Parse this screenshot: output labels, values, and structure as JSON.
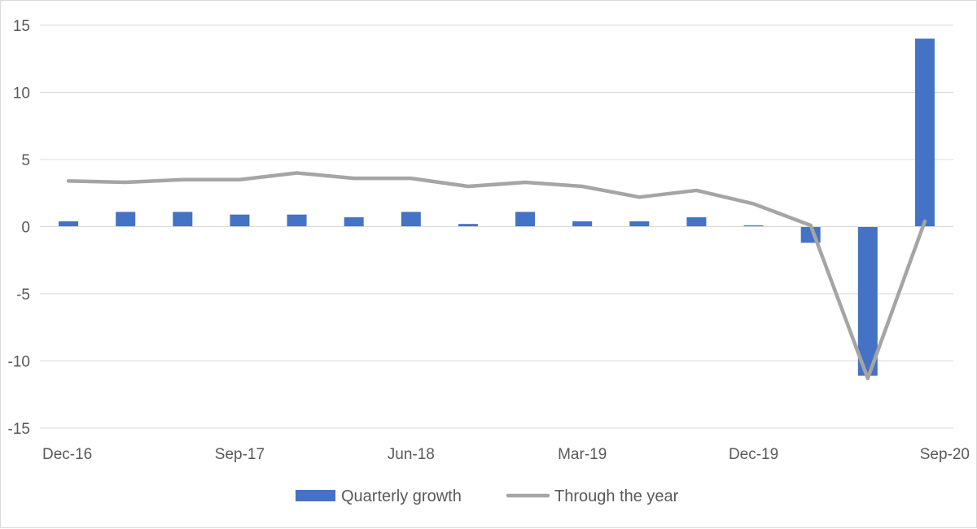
{
  "chart_data": {
    "type": "bar",
    "title": "",
    "xlabel": "",
    "ylabel": "",
    "ylim": [
      -15,
      15
    ],
    "y_ticks": [
      15,
      10,
      5,
      0,
      -5,
      -10,
      -15
    ],
    "y_tick_labels": [
      "15",
      "10",
      "5",
      "0",
      "-5",
      "-10",
      "-15"
    ],
    "categories": [
      "Dec-16",
      "Mar-17",
      "Jun-17",
      "Sep-17",
      "Dec-17",
      "Mar-18",
      "Jun-18",
      "Sep-18",
      "Dec-18",
      "Mar-19",
      "Jun-19",
      "Sep-19",
      "Dec-19",
      "Mar-20",
      "Jun-20",
      "Sep-20"
    ],
    "x_tick_labels": [
      "Dec-16",
      "",
      "",
      "Sep-17",
      "",
      "",
      "Jun-18",
      "",
      "",
      "Mar-19",
      "",
      "",
      "Dec-19",
      "",
      "",
      "Sep-20"
    ],
    "grid": true,
    "legend_position": "bottom",
    "series": [
      {
        "name": "Quarterly growth",
        "kind": "bar",
        "color": "#4472c4",
        "values": [
          0.4,
          1.1,
          1.1,
          0.9,
          0.9,
          0.7,
          1.1,
          0.2,
          1.1,
          0.4,
          0.4,
          0.7,
          0.1,
          -1.2,
          -11.1,
          14.0
        ]
      },
      {
        "name": "Through the year",
        "kind": "line",
        "color": "#a5a5a5",
        "values": [
          3.4,
          3.3,
          3.5,
          3.5,
          4.0,
          3.6,
          3.6,
          3.0,
          3.3,
          3.0,
          2.2,
          2.7,
          1.7,
          0.1,
          -11.3,
          0.4
        ]
      }
    ]
  }
}
